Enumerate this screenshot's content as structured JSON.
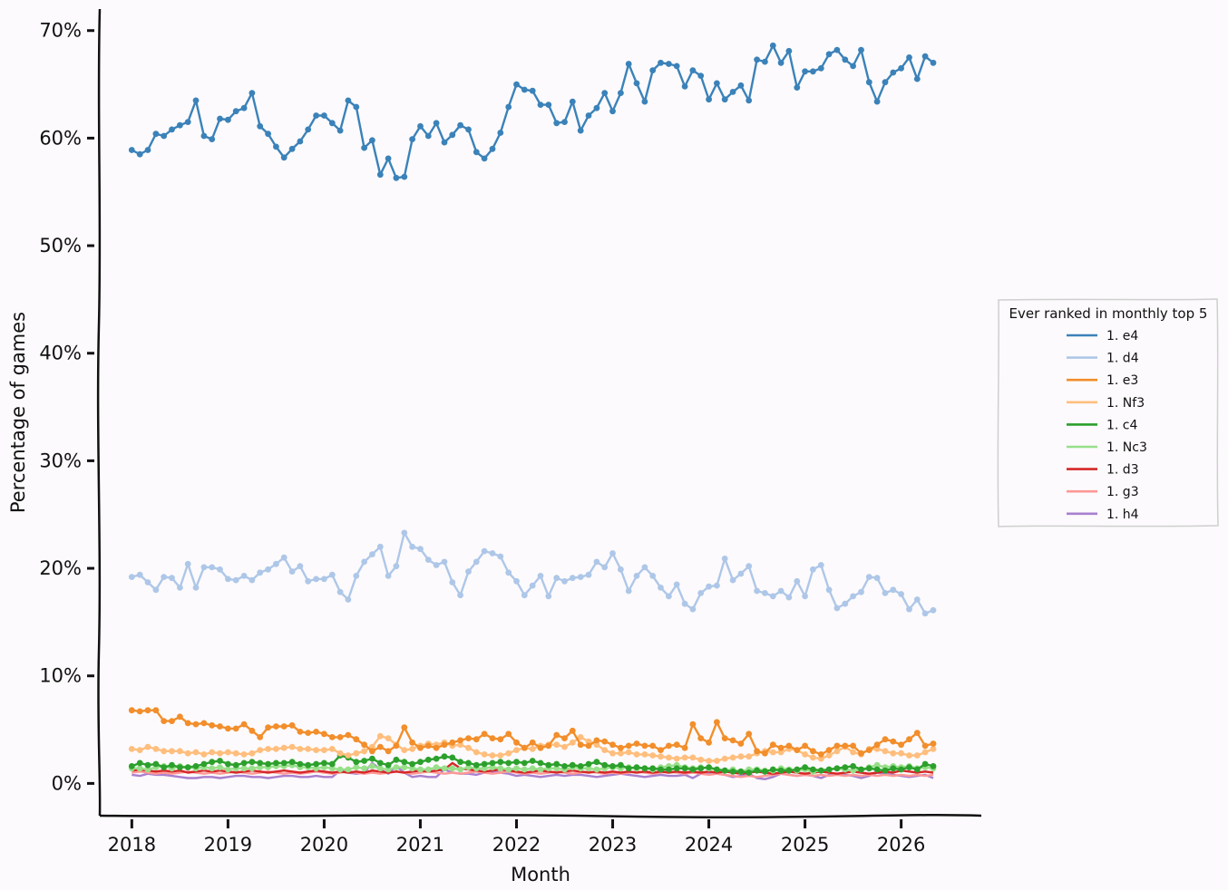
{
  "chart_data": {
    "type": "line",
    "xlabel": "Month",
    "ylabel": "Percentage of games",
    "x_range": [
      "2017-09",
      "2026-11"
    ],
    "ylim": [
      -3,
      72
    ],
    "y_ticks": [
      0,
      10,
      20,
      30,
      40,
      50,
      60,
      70
    ],
    "y_tick_labels": [
      "0%",
      "10%",
      "20%",
      "30%",
      "40%",
      "50%",
      "60%",
      "70%"
    ],
    "x_ticks": [
      "2018-01",
      "2019-01",
      "2020-01",
      "2021-01",
      "2022-01",
      "2023-01",
      "2024-01",
      "2025-01",
      "2026-01"
    ],
    "x_tick_labels": [
      "2018",
      "2019",
      "2020",
      "2021",
      "2022",
      "2023",
      "2024",
      "2025",
      "2026"
    ],
    "grid": false,
    "legend": {
      "title": "Ever ranked in monthly top 5",
      "placement": "right"
    },
    "x": [
      "2018-01",
      "2018-02",
      "2018-03",
      "2018-04",
      "2018-05",
      "2018-06",
      "2018-07",
      "2018-08",
      "2018-09",
      "2018-10",
      "2018-11",
      "2018-12",
      "2019-01",
      "2019-02",
      "2019-03",
      "2019-04",
      "2019-05",
      "2019-06",
      "2019-07",
      "2019-08",
      "2019-09",
      "2019-10",
      "2019-11",
      "2019-12",
      "2020-01",
      "2020-02",
      "2020-03",
      "2020-04",
      "2020-05",
      "2020-06",
      "2020-07",
      "2020-08",
      "2020-09",
      "2020-10",
      "2020-11",
      "2020-12",
      "2021-01",
      "2021-02",
      "2021-03",
      "2021-04",
      "2021-05",
      "2021-06",
      "2021-07",
      "2021-08",
      "2021-09",
      "2021-10",
      "2021-11",
      "2021-12",
      "2022-01",
      "2022-02",
      "2022-03",
      "2022-04",
      "2022-05",
      "2022-06",
      "2022-07",
      "2022-08",
      "2022-09",
      "2022-10",
      "2022-11",
      "2022-12",
      "2023-01",
      "2023-02",
      "2023-03",
      "2023-04",
      "2023-05",
      "2023-06",
      "2023-07",
      "2023-08",
      "2023-09",
      "2023-10",
      "2023-11",
      "2023-12",
      "2024-01",
      "2024-02",
      "2024-03",
      "2024-04",
      "2024-05",
      "2024-06",
      "2024-07",
      "2024-08",
      "2024-09",
      "2024-10",
      "2024-11",
      "2024-12",
      "2025-01",
      "2025-02",
      "2025-03",
      "2025-04",
      "2025-05",
      "2025-06",
      "2025-07",
      "2025-08",
      "2025-09",
      "2025-10",
      "2025-11",
      "2025-12",
      "2026-01",
      "2026-02",
      "2026-03",
      "2026-04",
      "2026-05"
    ],
    "series": [
      {
        "name": "1. e4",
        "color": "#3b82b9",
        "markers": true,
        "values": [
          58.9,
          58.5,
          58.9,
          60.4,
          60.2,
          60.8,
          61.2,
          61.5,
          63.5,
          60.2,
          59.9,
          61.8,
          61.7,
          62.5,
          62.8,
          64.2,
          61.1,
          60.4,
          59.2,
          58.2,
          59.0,
          59.7,
          60.8,
          62.1,
          62.1,
          61.4,
          60.7,
          63.5,
          62.9,
          59.1,
          59.8,
          56.6,
          58.1,
          56.3,
          56.4,
          59.9,
          61.1,
          60.2,
          61.4,
          59.6,
          60.3,
          61.2,
          60.8,
          58.7,
          58.1,
          59.0,
          60.5,
          62.9,
          65.0,
          64.5,
          64.4,
          63.1,
          63.1,
          61.4,
          61.5,
          63.4,
          60.7,
          62.1,
          62.8,
          64.2,
          62.5,
          64.2,
          66.9,
          65.1,
          63.4,
          66.3,
          67.0,
          66.9,
          66.7,
          64.8,
          66.3,
          65.8,
          63.6,
          65.1,
          63.6,
          64.3,
          64.9,
          63.5,
          67.3,
          67.1,
          68.6,
          67.0,
          68.1,
          64.7,
          66.2,
          66.2,
          66.5,
          67.8,
          68.2,
          67.3,
          66.7,
          68.2,
          65.2,
          63.4,
          65.2,
          66.1,
          66.5,
          67.5,
          65.5,
          67.6,
          67.0
        ]
      },
      {
        "name": "1. d4",
        "color": "#aec7e8",
        "markers": true,
        "values": [
          19.2,
          19.4,
          18.7,
          18.0,
          19.2,
          19.1,
          18.2,
          20.4,
          18.2,
          20.1,
          20.1,
          19.9,
          19.0,
          18.9,
          19.3,
          18.9,
          19.6,
          19.9,
          20.4,
          21.0,
          19.7,
          20.2,
          18.8,
          19.0,
          19.0,
          19.4,
          17.8,
          17.1,
          19.3,
          20.6,
          21.3,
          22.0,
          19.3,
          20.2,
          23.3,
          22.0,
          21.8,
          20.8,
          20.3,
          20.6,
          18.7,
          17.5,
          19.7,
          20.6,
          21.6,
          21.4,
          21.1,
          19.6,
          18.8,
          17.5,
          18.4,
          19.3,
          17.4,
          19.1,
          18.8,
          19.1,
          19.2,
          19.4,
          20.6,
          20.1,
          21.4,
          19.9,
          17.9,
          19.3,
          20.1,
          19.3,
          18.2,
          17.4,
          18.5,
          16.7,
          16.2,
          17.7,
          18.3,
          18.4,
          20.9,
          18.9,
          19.5,
          20.2,
          17.9,
          17.7,
          17.4,
          17.9,
          17.3,
          18.8,
          17.4,
          19.9,
          20.3,
          18.0,
          16.3,
          16.7,
          17.4,
          17.8,
          19.2,
          19.1,
          17.7,
          18.0,
          17.6,
          16.2,
          17.1,
          15.8,
          16.1
        ]
      },
      {
        "name": "1. e3",
        "color": "#f28e2b",
        "markers": true,
        "values": [
          6.8,
          6.7,
          6.8,
          6.8,
          5.8,
          5.8,
          6.2,
          5.6,
          5.5,
          5.6,
          5.4,
          5.3,
          5.1,
          5.1,
          5.5,
          4.9,
          4.3,
          5.2,
          5.3,
          5.3,
          5.4,
          4.8,
          4.7,
          4.8,
          4.6,
          4.3,
          4.3,
          4.5,
          4.1,
          3.6,
          3.0,
          3.4,
          3.0,
          3.5,
          5.2,
          3.8,
          3.3,
          3.5,
          3.3,
          3.6,
          3.8,
          4.0,
          4.2,
          4.1,
          4.6,
          4.2,
          4.1,
          4.6,
          3.8,
          3.3,
          3.8,
          3.3,
          3.5,
          4.5,
          4.2,
          4.9,
          3.6,
          3.5,
          4.0,
          3.9,
          3.6,
          3.3,
          3.5,
          3.7,
          3.5,
          3.5,
          3.1,
          3.5,
          3.6,
          3.3,
          5.5,
          4.2,
          3.8,
          5.7,
          4.2,
          4.0,
          3.7,
          4.6,
          3.0,
          2.8,
          3.6,
          3.3,
          3.5,
          3.1,
          3.5,
          3.0,
          2.7,
          3.1,
          3.5,
          3.5,
          3.5,
          2.8,
          3.1,
          3.6,
          4.1,
          3.9,
          3.6,
          4.1,
          4.7,
          3.5,
          3.7
        ]
      },
      {
        "name": "1. Nf3",
        "color": "#ffbe7d",
        "markers": true,
        "values": [
          3.2,
          3.1,
          3.4,
          3.2,
          3.0,
          3.0,
          3.0,
          2.8,
          2.9,
          2.7,
          2.9,
          2.8,
          2.9,
          2.8,
          2.7,
          2.8,
          3.1,
          3.2,
          3.2,
          3.3,
          3.4,
          3.2,
          3.2,
          3.1,
          3.1,
          3.2,
          2.8,
          2.6,
          2.8,
          3.0,
          3.4,
          4.4,
          4.2,
          3.6,
          3.1,
          3.2,
          3.5,
          3.7,
          3.6,
          3.8,
          3.5,
          3.6,
          3.3,
          2.9,
          2.7,
          2.6,
          2.6,
          2.8,
          3.1,
          3.3,
          3.2,
          3.5,
          3.6,
          3.6,
          3.4,
          3.8,
          4.3,
          3.9,
          3.6,
          3.1,
          2.8,
          2.8,
          2.9,
          2.7,
          2.7,
          2.6,
          2.5,
          2.4,
          2.3,
          2.4,
          2.4,
          2.2,
          2.1,
          2.1,
          2.3,
          2.4,
          2.5,
          2.5,
          2.8,
          3.0,
          2.9,
          2.9,
          3.2,
          3.1,
          2.7,
          2.4,
          2.3,
          2.6,
          3.0,
          3.4,
          2.9,
          2.7,
          3.2,
          3.2,
          3.0,
          2.8,
          2.8,
          2.6,
          2.6,
          2.9,
          3.2
        ]
      },
      {
        "name": "1. c4",
        "color": "#2ca02c",
        "markers": true,
        "values": [
          1.6,
          1.9,
          1.7,
          1.8,
          1.5,
          1.7,
          1.5,
          1.5,
          1.6,
          1.8,
          2.0,
          2.1,
          1.8,
          1.7,
          1.9,
          2.0,
          1.9,
          1.8,
          1.9,
          1.9,
          2.0,
          1.8,
          1.7,
          1.8,
          1.9,
          1.8,
          2.6,
          2.4,
          2.0,
          2.1,
          2.3,
          1.9,
          1.7,
          2.2,
          2.0,
          1.8,
          2.0,
          2.2,
          2.3,
          2.5,
          2.4,
          2.0,
          1.9,
          1.7,
          1.8,
          1.9,
          2.0,
          1.9,
          2.0,
          1.9,
          2.1,
          1.9,
          1.7,
          1.8,
          1.6,
          1.7,
          1.6,
          1.8,
          2.0,
          1.7,
          1.6,
          1.7,
          1.4,
          1.5,
          1.4,
          1.4,
          1.3,
          1.3,
          1.4,
          1.4,
          1.3,
          1.4,
          1.5,
          1.3,
          1.2,
          1.1,
          1.1,
          1.0,
          1.2,
          1.1,
          1.3,
          1.2,
          1.2,
          1.3,
          1.5,
          1.3,
          1.2,
          1.3,
          1.4,
          1.5,
          1.6,
          1.3,
          1.4,
          1.3,
          1.2,
          1.4,
          1.3,
          1.5,
          1.3,
          1.8,
          1.6
        ]
      },
      {
        "name": "1. Nc3",
        "color": "#98df8a",
        "markers": true,
        "values": [
          1.4,
          1.4,
          1.3,
          1.5,
          1.6,
          1.4,
          1.6,
          1.5,
          1.4,
          1.5,
          1.4,
          1.5,
          1.3,
          1.4,
          1.4,
          1.4,
          1.5,
          1.5,
          1.6,
          1.6,
          1.7,
          1.5,
          1.5,
          1.4,
          1.5,
          1.4,
          1.3,
          1.3,
          1.5,
          1.4,
          1.6,
          1.4,
          1.3,
          1.5,
          1.5,
          1.4,
          1.3,
          1.3,
          1.5,
          1.4,
          1.4,
          1.3,
          1.5,
          1.4,
          1.4,
          1.5,
          1.4,
          1.3,
          1.4,
          1.3,
          1.4,
          1.3,
          1.4,
          1.4,
          1.3,
          1.5,
          1.4,
          1.4,
          1.3,
          1.4,
          1.5,
          1.4,
          1.5,
          1.4,
          1.4,
          1.3,
          1.5,
          1.6,
          1.7,
          1.5,
          1.4,
          1.5,
          1.4,
          1.3,
          1.2,
          1.3,
          1.1,
          1.3,
          1.3,
          1.2,
          1.2,
          1.4,
          1.3,
          1.2,
          1.3,
          1.1,
          1.2,
          1.3,
          1.4,
          1.3,
          1.2,
          1.3,
          1.5,
          1.7,
          1.5,
          1.6,
          1.5,
          1.6,
          1.4,
          1.5,
          1.4
        ]
      },
      {
        "name": "1. d3",
        "color": "#d62728",
        "markers": false,
        "values": [
          1.2,
          1.3,
          1.2,
          1.1,
          1.2,
          1.1,
          1.2,
          1.0,
          1.1,
          1.2,
          1.1,
          1.2,
          1.1,
          1.0,
          1.1,
          1.2,
          1.1,
          1.0,
          1.1,
          1.2,
          1.1,
          1.0,
          1.1,
          1.2,
          1.1,
          1.0,
          1.1,
          1.0,
          1.1,
          1.0,
          1.2,
          1.1,
          1.0,
          1.1,
          1.0,
          1.1,
          1.2,
          1.1,
          1.2,
          1.3,
          1.9,
          1.4,
          1.3,
          1.2,
          1.1,
          1.2,
          1.3,
          1.2,
          1.1,
          1.0,
          1.1,
          1.2,
          1.1,
          1.0,
          1.1,
          1.2,
          1.1,
          1.0,
          1.1,
          1.0,
          1.1,
          1.0,
          1.1,
          1.0,
          1.1,
          1.0,
          1.1,
          1.0,
          1.1,
          1.0,
          1.1,
          1.0,
          1.1,
          1.0,
          1.1,
          1.0,
          0.9,
          1.0,
          1.1,
          1.0,
          0.9,
          1.0,
          1.1,
          1.0,
          0.9,
          1.0,
          1.1,
          1.0,
          0.9,
          1.0,
          1.1,
          1.0,
          0.9,
          1.0,
          1.1,
          1.0,
          1.2,
          1.1,
          1.0,
          1.1,
          1.0
        ]
      },
      {
        "name": "1. g3",
        "color": "#ff9896",
        "markers": false,
        "values": [
          1.0,
          1.1,
          1.0,
          0.9,
          1.0,
          0.9,
          1.0,
          1.1,
          1.0,
          0.9,
          1.0,
          0.9,
          1.0,
          1.1,
          1.0,
          0.9,
          1.0,
          1.1,
          1.0,
          0.9,
          1.0,
          0.9,
          1.0,
          1.1,
          1.0,
          0.9,
          1.0,
          1.1,
          1.0,
          0.9,
          1.0,
          0.9,
          1.0,
          1.1,
          1.0,
          0.9,
          1.0,
          1.1,
          1.0,
          0.9,
          1.0,
          0.9,
          1.0,
          1.1,
          1.0,
          0.9,
          1.0,
          1.1,
          1.0,
          0.9,
          1.0,
          0.9,
          1.0,
          1.1,
          1.0,
          0.9,
          1.0,
          1.1,
          1.0,
          0.9,
          1.0,
          0.9,
          1.0,
          1.1,
          1.0,
          0.9,
          1.0,
          1.1,
          1.0,
          0.9,
          1.0,
          0.9,
          0.8,
          0.9,
          0.8,
          0.7,
          0.6,
          0.7,
          0.6,
          0.7,
          0.8,
          0.9,
          0.8,
          0.7,
          0.8,
          0.7,
          0.8,
          0.7,
          0.8,
          0.7,
          0.8,
          0.7,
          0.8,
          0.7,
          0.8,
          0.7,
          0.8,
          0.7,
          0.8,
          0.7,
          0.8
        ]
      },
      {
        "name": "1. h4",
        "color": "#a97fcf",
        "markers": false,
        "values": [
          0.8,
          0.7,
          0.9,
          0.8,
          0.8,
          0.7,
          0.6,
          0.5,
          0.5,
          0.6,
          0.6,
          0.5,
          0.6,
          0.7,
          0.7,
          0.6,
          0.6,
          0.5,
          0.6,
          0.7,
          0.7,
          0.6,
          0.6,
          0.7,
          0.6,
          0.6,
          1.2,
          1.0,
          0.9,
          1.0,
          1.9,
          1.3,
          0.9,
          1.6,
          1.0,
          0.6,
          0.7,
          0.6,
          0.6,
          1.3,
          1.0,
          0.9,
          0.9,
          0.8,
          1.0,
          1.1,
          1.0,
          0.9,
          0.7,
          0.8,
          0.7,
          0.6,
          0.7,
          0.8,
          0.7,
          0.8,
          0.8,
          0.7,
          0.6,
          0.7,
          0.8,
          0.9,
          0.8,
          0.7,
          0.6,
          0.7,
          0.8,
          0.7,
          0.7,
          0.8,
          0.5,
          0.9,
          1.0,
          0.9,
          0.8,
          0.6,
          0.7,
          0.9,
          0.5,
          0.4,
          0.6,
          0.9,
          0.8,
          0.7,
          0.8,
          0.7,
          0.5,
          0.8,
          0.9,
          0.8,
          0.7,
          0.5,
          0.7,
          1.0,
          0.9,
          0.8,
          0.7,
          0.6,
          0.7,
          0.8,
          0.5
        ]
      }
    ]
  }
}
